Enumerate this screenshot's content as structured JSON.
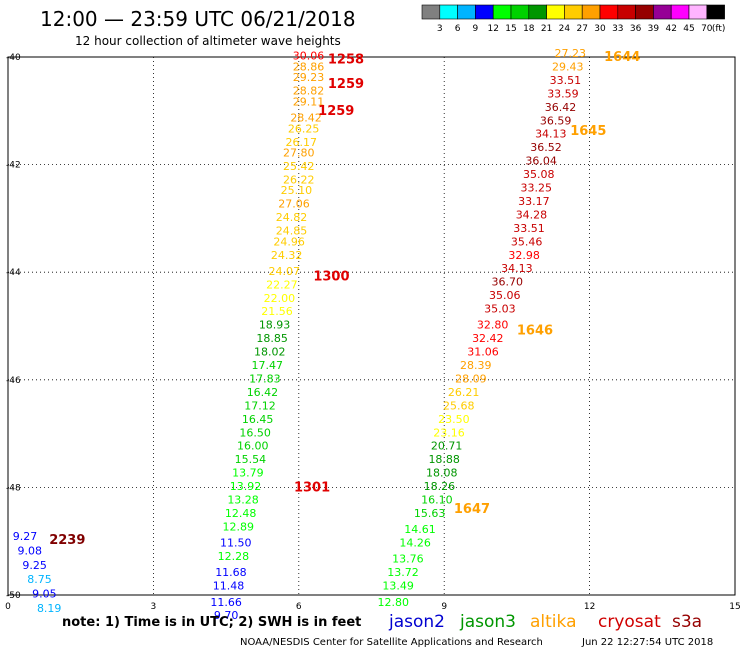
{
  "header": {
    "title": "12:00 — 23:59 UTC 06/21/2018",
    "subtitle": "12 hour collection of altimeter wave heights"
  },
  "scale": {
    "colors": [
      "#808080",
      "#00ffff",
      "#00b4ff",
      "#0000ff",
      "#00ff00",
      "#00d200",
      "#009600",
      "#ffff00",
      "#ffcc00",
      "#ffa000",
      "#ff0000",
      "#c80000",
      "#960000",
      "#960096",
      "#ff00ff",
      "#ffb4ff",
      "#000000"
    ],
    "labels": [
      "3",
      "6",
      "9",
      "12",
      "15",
      "18",
      "21",
      "24",
      "27",
      "30",
      "33",
      "36",
      "39",
      "42",
      "45",
      "70"
    ],
    "unit": "(ft)"
  },
  "footer": {
    "note": "note: 1) Time is in UTC; 2) SWH is in feet",
    "satellites": [
      {
        "name": "jason2",
        "color": "#0000d0"
      },
      {
        "name": "jason3",
        "color": "#009600"
      },
      {
        "name": "altika",
        "color": "#ffa000"
      },
      {
        "name": "cryosat",
        "color": "#d00000"
      },
      {
        "name": "s3a",
        "color": "#960000"
      }
    ],
    "credit": "NOAA/NESDIS Center for Satellite Applications and Research",
    "generated": "Jun 22 12:27:54 UTC 2018"
  },
  "chart_data": {
    "type": "scatter",
    "xlim": [
      0,
      15
    ],
    "ylim": [
      -50,
      -40
    ],
    "xticks": [
      "0",
      "3",
      "6",
      "9",
      "12",
      "15"
    ],
    "xtick_values": [
      0,
      3,
      6,
      9,
      12,
      15
    ],
    "yticks": [
      "-40",
      "-42",
      "-44",
      "-46",
      "-48",
      "-50"
    ],
    "ytick_values": [
      -40,
      -42,
      -44,
      -46,
      -48,
      -50
    ],
    "grid": true,
    "time_labels": [
      {
        "text": "1258",
        "lon": 6.6,
        "lat": -40.05,
        "color": "#e00000"
      },
      {
        "text": "1259",
        "lon": 6.6,
        "lat": -40.5,
        "color": "#e00000"
      },
      {
        "text": "1259",
        "lon": 6.4,
        "lat": -41.0,
        "color": "#e00000"
      },
      {
        "text": "1300",
        "lon": 6.3,
        "lat": -44.08,
        "color": "#e00000"
      },
      {
        "text": "1301",
        "lon": 5.9,
        "lat": -48.0,
        "color": "#e00000"
      },
      {
        "text": "1644",
        "lon": 12.3,
        "lat": -40.0,
        "color": "#ffa000"
      },
      {
        "text": "1645",
        "lon": 11.6,
        "lat": -41.38,
        "color": "#ffa000"
      },
      {
        "text": "1646",
        "lon": 10.5,
        "lat": -45.08,
        "color": "#ffa000"
      },
      {
        "text": "1647",
        "lon": 9.2,
        "lat": -48.4,
        "color": "#ffa000"
      },
      {
        "text": "2239",
        "lon": 0.85,
        "lat": -48.98,
        "color": "#800000"
      }
    ],
    "series": [
      {
        "name": "cryosat",
        "points": [
          {
            "lon": 6.2,
            "lat": -40.05,
            "v": "30.06"
          },
          {
            "lon": 6.2,
            "lat": -40.25,
            "v": "28.86"
          },
          {
            "lon": 6.2,
            "lat": -40.45,
            "v": "29.23"
          },
          {
            "lon": 6.2,
            "lat": -40.7,
            "v": "28.82"
          },
          {
            "lon": 6.2,
            "lat": -40.9,
            "v": "29.11"
          },
          {
            "lon": 6.15,
            "lat": -41.2,
            "v": "28.42"
          },
          {
            "lon": 6.1,
            "lat": -41.4,
            "v": "26.25"
          },
          {
            "lon": 6.05,
            "lat": -41.65,
            "v": "26.17"
          },
          {
            "lon": 6.0,
            "lat": -41.85,
            "v": "27.80"
          },
          {
            "lon": 6.0,
            "lat": -42.1,
            "v": "25.42"
          },
          {
            "lon": 6.0,
            "lat": -42.35,
            "v": "26.22"
          },
          {
            "lon": 5.95,
            "lat": -42.55,
            "v": "25.10"
          },
          {
            "lon": 5.9,
            "lat": -42.8,
            "v": "27.06"
          },
          {
            "lon": 5.85,
            "lat": -43.05,
            "v": "24.82"
          },
          {
            "lon": 5.85,
            "lat": -43.3,
            "v": "24.85"
          },
          {
            "lon": 5.8,
            "lat": -43.5,
            "v": "24.96"
          },
          {
            "lon": 5.75,
            "lat": -43.75,
            "v": "24.32"
          },
          {
            "lon": 5.7,
            "lat": -44.05,
            "v": "24.07"
          },
          {
            "lon": 5.65,
            "lat": -44.3,
            "v": "22.27"
          },
          {
            "lon": 5.6,
            "lat": -44.55,
            "v": "22.00"
          },
          {
            "lon": 5.55,
            "lat": -44.8,
            "v": "21.56"
          },
          {
            "lon": 5.5,
            "lat": -45.05,
            "v": "18.93"
          },
          {
            "lon": 5.45,
            "lat": -45.3,
            "v": "18.85"
          },
          {
            "lon": 5.4,
            "lat": -45.55,
            "v": "18.02"
          },
          {
            "lon": 5.35,
            "lat": -45.8,
            "v": "17.47"
          },
          {
            "lon": 5.3,
            "lat": -46.05,
            "v": "17.83"
          },
          {
            "lon": 5.25,
            "lat": -46.3,
            "v": "16.42"
          },
          {
            "lon": 5.2,
            "lat": -46.55,
            "v": "17.12"
          },
          {
            "lon": 5.15,
            "lat": -46.8,
            "v": "16.45"
          },
          {
            "lon": 5.1,
            "lat": -47.05,
            "v": "16.50"
          },
          {
            "lon": 5.05,
            "lat": -47.3,
            "v": "16.00"
          },
          {
            "lon": 5.0,
            "lat": -47.55,
            "v": "15.54"
          },
          {
            "lon": 4.95,
            "lat": -47.8,
            "v": "13.79"
          },
          {
            "lon": 4.9,
            "lat": -48.05,
            "v": "13.92"
          },
          {
            "lon": 4.85,
            "lat": -48.3,
            "v": "13.28"
          },
          {
            "lon": 4.8,
            "lat": -48.55,
            "v": "12.48"
          },
          {
            "lon": 4.75,
            "lat": -48.8,
            "v": "12.89"
          },
          {
            "lon": 4.7,
            "lat": -49.1,
            "v": "11.50"
          },
          {
            "lon": 4.65,
            "lat": -49.35,
            "v": "12.28"
          },
          {
            "lon": 4.6,
            "lat": -49.65,
            "v": "11.68"
          },
          {
            "lon": 4.55,
            "lat": -49.9,
            "v": "11.48"
          },
          {
            "lon": 4.5,
            "lat": -50.2,
            "v": "11.66"
          },
          {
            "lon": 4.5,
            "lat": -50.45,
            "v": "9.70"
          }
        ]
      },
      {
        "name": "altika",
        "points": [
          {
            "lon": 11.6,
            "lat": -40.0,
            "v": "27.23"
          },
          {
            "lon": 11.55,
            "lat": -40.25,
            "v": "29.43"
          },
          {
            "lon": 11.5,
            "lat": -40.5,
            "v": "33.51"
          },
          {
            "lon": 11.45,
            "lat": -40.75,
            "v": "33.59"
          },
          {
            "lon": 11.4,
            "lat": -41.0,
            "v": "36.42"
          },
          {
            "lon": 11.3,
            "lat": -41.25,
            "v": "36.59"
          },
          {
            "lon": 11.2,
            "lat": -41.5,
            "v": "34.13"
          },
          {
            "lon": 11.1,
            "lat": -41.75,
            "v": "36.52"
          },
          {
            "lon": 11.0,
            "lat": -42.0,
            "v": "36.04"
          },
          {
            "lon": 10.95,
            "lat": -42.25,
            "v": "35.08"
          },
          {
            "lon": 10.9,
            "lat": -42.5,
            "v": "33.25"
          },
          {
            "lon": 10.85,
            "lat": -42.75,
            "v": "33.17"
          },
          {
            "lon": 10.8,
            "lat": -43.0,
            "v": "34.28"
          },
          {
            "lon": 10.75,
            "lat": -43.25,
            "v": "33.51"
          },
          {
            "lon": 10.7,
            "lat": -43.5,
            "v": "35.46"
          },
          {
            "lon": 10.65,
            "lat": -43.75,
            "v": "32.98"
          },
          {
            "lon": 10.5,
            "lat": -44.0,
            "v": "34.13"
          },
          {
            "lon": 10.3,
            "lat": -44.25,
            "v": "36.70"
          },
          {
            "lon": 10.25,
            "lat": -44.5,
            "v": "35.06"
          },
          {
            "lon": 10.15,
            "lat": -44.75,
            "v": "35.03"
          },
          {
            "lon": 10.0,
            "lat": -45.05,
            "v": "32.80"
          },
          {
            "lon": 9.9,
            "lat": -45.3,
            "v": "32.42"
          },
          {
            "lon": 9.8,
            "lat": -45.55,
            "v": "31.06"
          },
          {
            "lon": 9.65,
            "lat": -45.8,
            "v": "28.39"
          },
          {
            "lon": 9.55,
            "lat": -46.05,
            "v": "28.09"
          },
          {
            "lon": 9.4,
            "lat": -46.3,
            "v": "26.21"
          },
          {
            "lon": 9.3,
            "lat": -46.55,
            "v": "25.68"
          },
          {
            "lon": 9.2,
            "lat": -46.8,
            "v": "23.50"
          },
          {
            "lon": 9.1,
            "lat": -47.05,
            "v": "23.16"
          },
          {
            "lon": 9.05,
            "lat": -47.3,
            "v": "20.71"
          },
          {
            "lon": 9.0,
            "lat": -47.55,
            "v": "18.88"
          },
          {
            "lon": 8.95,
            "lat": -47.8,
            "v": "18.08"
          },
          {
            "lon": 8.9,
            "lat": -48.05,
            "v": "18.26"
          },
          {
            "lon": 8.85,
            "lat": -48.3,
            "v": "16.10"
          },
          {
            "lon": 8.7,
            "lat": -48.55,
            "v": "15.63"
          },
          {
            "lon": 8.5,
            "lat": -48.85,
            "v": "14.61"
          },
          {
            "lon": 8.4,
            "lat": -49.1,
            "v": "14.26"
          },
          {
            "lon": 8.25,
            "lat": -49.4,
            "v": "13.76"
          },
          {
            "lon": 8.15,
            "lat": -49.65,
            "v": "13.72"
          },
          {
            "lon": 8.05,
            "lat": -49.9,
            "v": "13.49"
          },
          {
            "lon": 7.95,
            "lat": -50.2,
            "v": "12.80"
          }
        ]
      },
      {
        "name": "s3a",
        "points": [
          {
            "lon": 0.35,
            "lat": -48.98,
            "v": "9.27"
          },
          {
            "lon": 0.45,
            "lat": -49.25,
            "v": "9.08"
          },
          {
            "lon": 0.55,
            "lat": -49.52,
            "v": "9.25"
          },
          {
            "lon": 0.65,
            "lat": -49.78,
            "v": "8.75"
          },
          {
            "lon": 0.75,
            "lat": -50.05,
            "v": "9.05"
          },
          {
            "lon": 0.85,
            "lat": -50.32,
            "v": "8.19"
          }
        ]
      }
    ]
  }
}
